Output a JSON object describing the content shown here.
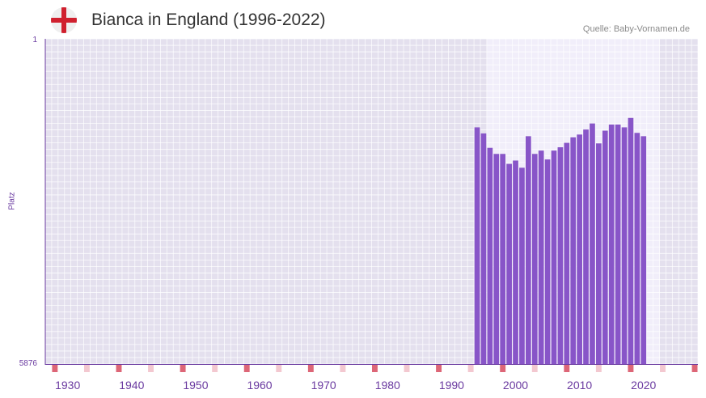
{
  "header": {
    "title": "Bianca in England (1996-2022)",
    "source": "Quelle: Baby-Vornamen.de",
    "flag_icon": "england-flag-icon"
  },
  "colors": {
    "bar": "#8855c8",
    "plot_bg": "#e4e0ee",
    "highlight_bg": "#f1eefa",
    "axis": "#6a3aa0",
    "decade_marker": "#dd6677",
    "half_decade_marker": "#f3c8d0"
  },
  "chart_data": {
    "type": "bar",
    "title": "Bianca in England (1996-2022)",
    "xlabel": "",
    "ylabel": "Platz",
    "y_inverted": true,
    "ylim": [
      1,
      5876
    ],
    "y_ticks": [
      "1",
      "5876"
    ],
    "xlim": [
      1927,
      2028
    ],
    "x_ticks": [
      "1930",
      "1940",
      "1950",
      "1960",
      "1970",
      "1980",
      "1990",
      "2000",
      "2010",
      "2020"
    ],
    "highlight_range": [
      1996,
      2022
    ],
    "categories": [
      1994,
      1995,
      1996,
      1997,
      1998,
      1999,
      2000,
      2001,
      2002,
      2003,
      2004,
      2005,
      2006,
      2007,
      2008,
      2009,
      2010,
      2011,
      2012,
      2013,
      2014,
      2015,
      2016,
      2017,
      2018,
      2019,
      2020
    ],
    "values": [
      1600,
      1710,
      1970,
      2080,
      2080,
      2260,
      2200,
      2330,
      1760,
      2080,
      2020,
      2180,
      2020,
      1960,
      1880,
      1780,
      1730,
      1640,
      1530,
      1890,
      1660,
      1550,
      1550,
      1600,
      1430,
      1700,
      1760
    ]
  }
}
